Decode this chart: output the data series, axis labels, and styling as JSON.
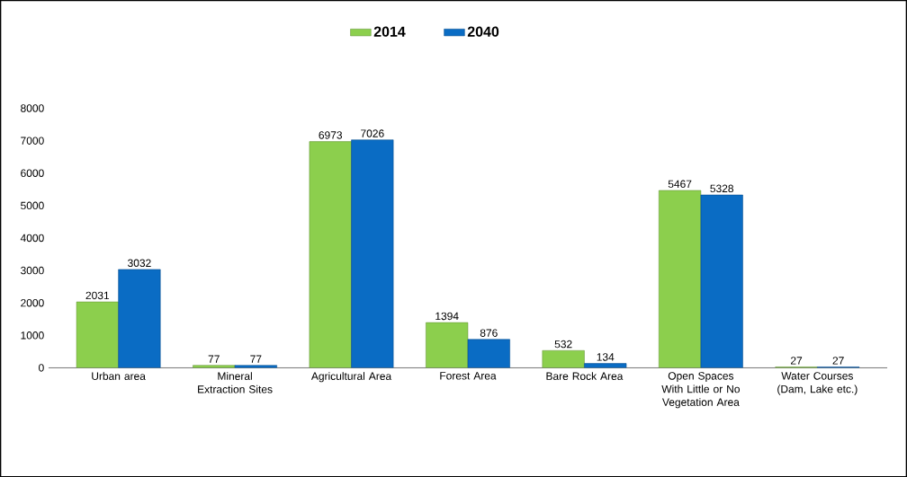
{
  "chart_data": {
    "type": "bar",
    "categories": [
      "Urban area",
      "Mineral Extraction Sites",
      "Agricultural Area",
      "Forest Area",
      "Bare Rock Area",
      "Open Spaces With Little or No Vegetation Area",
      "Water Courses (Dam, Lake etc.)"
    ],
    "series": [
      {
        "name": "2014",
        "color": "#8ccf4d",
        "values": [
          2031,
          77,
          6973,
          1394,
          532,
          5467,
          27
        ]
      },
      {
        "name": "2040",
        "color": "#0a6cc4",
        "values": [
          3032,
          77,
          7026,
          876,
          134,
          5328,
          27
        ]
      }
    ],
    "ylim": [
      0,
      8000
    ],
    "yticks": [
      0,
      1000,
      2000,
      3000,
      4000,
      5000,
      6000,
      7000,
      8000
    ],
    "data_labels": true,
    "legend": "top",
    "grid": false
  }
}
